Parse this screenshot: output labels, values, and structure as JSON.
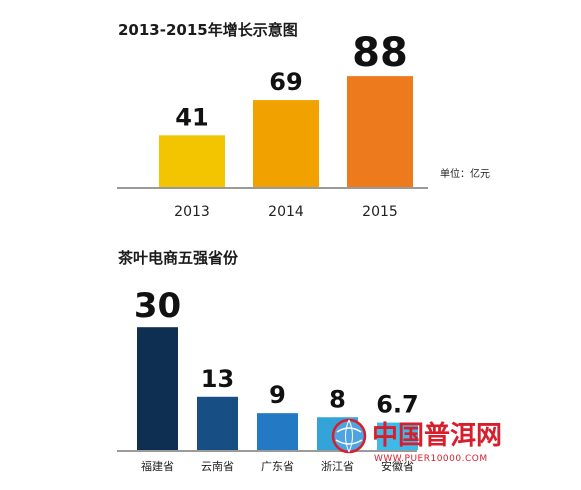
{
  "chart_data": [
    {
      "type": "bar",
      "title": "2013-2015年增长示意图",
      "unit_note": "单位：亿元",
      "categories": [
        "2013",
        "2014",
        "2015"
      ],
      "values": [
        41,
        69,
        88
      ],
      "value_labels": [
        "41",
        "69",
        "88"
      ],
      "colors": [
        "#f3c400",
        "#f2a200",
        "#ee7a1e"
      ],
      "ylim": [
        0,
        100
      ],
      "grid": false,
      "legend": "none"
    },
    {
      "type": "bar",
      "title": "茶叶电商五强省份",
      "categories": [
        "福建省",
        "云南省",
        "广东省",
        "浙江省",
        "安徽省"
      ],
      "values": [
        30,
        13,
        9,
        8,
        6.7
      ],
      "value_labels": [
        "30",
        "13",
        "9",
        "8",
        "6.7"
      ],
      "colors": [
        "#0e2f52",
        "#174f84",
        "#2479c4",
        "#34a3d8",
        "#3fb9e8"
      ],
      "ylim": [
        0,
        32
      ],
      "grid": false,
      "legend": "none"
    }
  ],
  "watermark": {
    "text": "中国普洱网",
    "url_text": "WWW.PUER10000.COM",
    "color": "#d81e2c"
  }
}
